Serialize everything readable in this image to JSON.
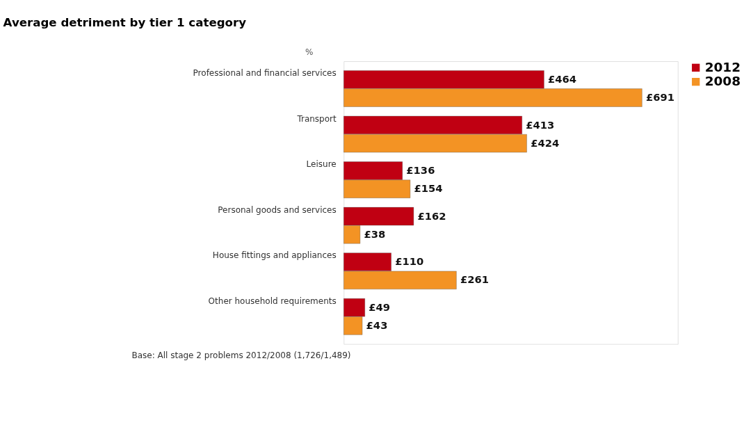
{
  "chart_data": {
    "type": "bar",
    "orientation": "horizontal",
    "title": "Average detriment by tier 1 category",
    "categories": [
      "Professional and financial services",
      "Transport",
      "Leisure",
      "Personal goods and services",
      "House fittings and appliances",
      "Other household requirements"
    ],
    "series": [
      {
        "name": "2012",
        "color": "#c00012",
        "values": [
          464,
          413,
          136,
          162,
          110,
          49
        ],
        "value_labels": [
          "£464",
          "£413",
          "£136",
          "£162",
          "£110",
          "£49"
        ]
      },
      {
        "name": "2008",
        "color": "#f39324",
        "values": [
          691,
          424,
          154,
          38,
          261,
          43
        ],
        "value_labels": [
          "£691",
          "£424",
          "£154",
          "£38",
          "£261",
          "£43"
        ]
      }
    ],
    "legend": "right",
    "annotations": [
      "%",
      "Base: All stage 2 problems 2012/2008 (1,726/1,489)"
    ]
  }
}
